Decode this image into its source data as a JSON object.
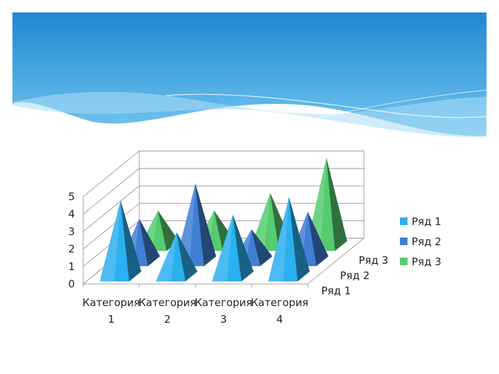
{
  "slide": {
    "banner_colors": {
      "top": "#1e88d2",
      "bottom": "#74c6ef",
      "wave": "#a9dcf6"
    }
  },
  "chart_data": {
    "type": "bar",
    "shape": "3d-pyramid",
    "categories": [
      "Категория 1",
      "Категория 2",
      "Категория 3",
      "Категория 4"
    ],
    "category_lines": [
      [
        "Категория",
        "1"
      ],
      [
        "Категория",
        "2"
      ],
      [
        "Категория",
        "3"
      ],
      [
        "Категория",
        "4"
      ]
    ],
    "series": [
      {
        "name": "Ряд 1",
        "values": [
          4.3,
          2.5,
          3.5,
          4.5
        ],
        "color": "#2bb0f0"
      },
      {
        "name": "Ряд 2",
        "values": [
          2.4,
          4.4,
          1.8,
          2.8
        ],
        "color": "#3f7fd6"
      },
      {
        "name": "Ряд 3",
        "values": [
          2.0,
          2.0,
          3.0,
          5.0
        ],
        "color": "#55cc70"
      }
    ],
    "y_ticks": [
      "0",
      "1",
      "2",
      "3",
      "4",
      "5"
    ],
    "ylim": [
      0,
      5
    ],
    "grid": true,
    "legend_position": "right"
  }
}
